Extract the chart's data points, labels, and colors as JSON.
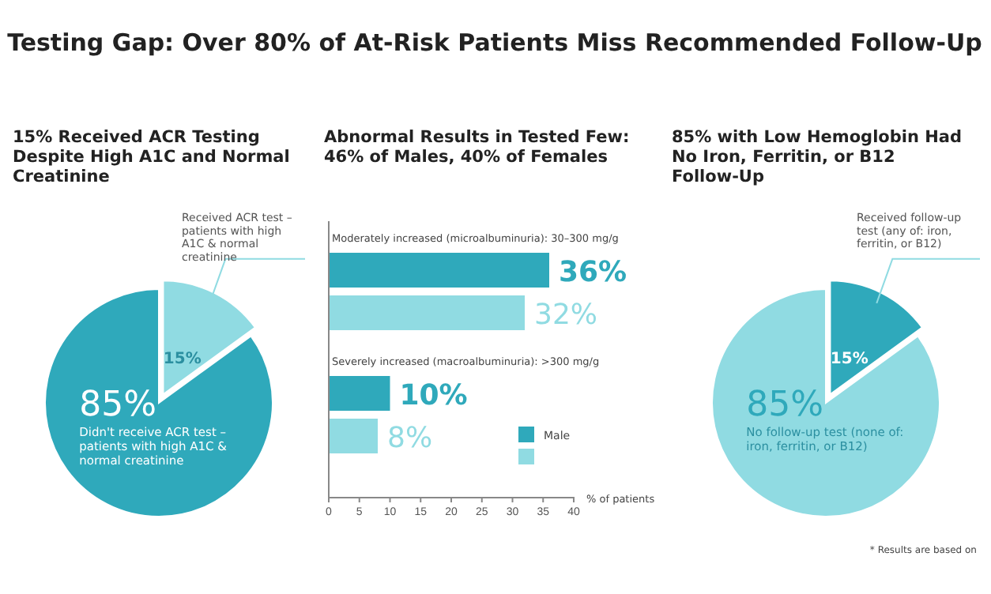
{
  "chart_data": [
    {
      "type": "other",
      "title": "Testing Gap: Over 80% of At-Risk Patients Miss Recommended Follow-Up"
    },
    {
      "type": "pie",
      "title": "15% Received ACR Testing Despite High A1C and Normal Creatinine",
      "categories": [
        "Received ACR test – patients with high A1C & normal creatinine",
        "Didn't receive ACR test – patients with high A1C & normal creatinine"
      ],
      "values": [
        15,
        85
      ],
      "colors": [
        "#90dbe2",
        "#2fa9bb"
      ],
      "value_labels": [
        "15%",
        "85%"
      ]
    },
    {
      "type": "bar",
      "orientation": "horizontal",
      "title": "Abnormal Results in Tested Few: 46% of Males, 40% of Females",
      "categories": [
        "Moderately increased (microalbuminuria): 30–300 mg/g",
        "Severely increased (macroalbuminuria): >300 mg/g"
      ],
      "series": [
        {
          "name": "Male",
          "color": "#2fa9bb",
          "values": [
            36,
            10
          ],
          "value_labels": [
            "36%",
            "10%"
          ]
        },
        {
          "color": "#90dbe2",
          "values": [
            32,
            8
          ],
          "value_labels": [
            "32%",
            "8%"
          ]
        }
      ],
      "xlim": [
        0,
        40
      ],
      "xticks": [
        0,
        5,
        10,
        15,
        20,
        25,
        30,
        35,
        40
      ],
      "xlabel": "% of patients",
      "legend": "bottom right",
      "grid": false
    },
    {
      "type": "pie",
      "title": "85% with Low Hemoglobin Had No Iron, Ferritin, or B12 Follow-Up",
      "categories": [
        "Received follow-up test (any of: iron, ferritin, or B12)",
        "No follow-up test (none of: iron, ferritin, or B12)"
      ],
      "values": [
        15,
        85
      ],
      "colors": [
        "#2fa9bb",
        "#90dbe2"
      ],
      "value_labels": [
        "15%",
        "85%"
      ],
      "annotations": [
        "* Results are based on"
      ]
    }
  ]
}
